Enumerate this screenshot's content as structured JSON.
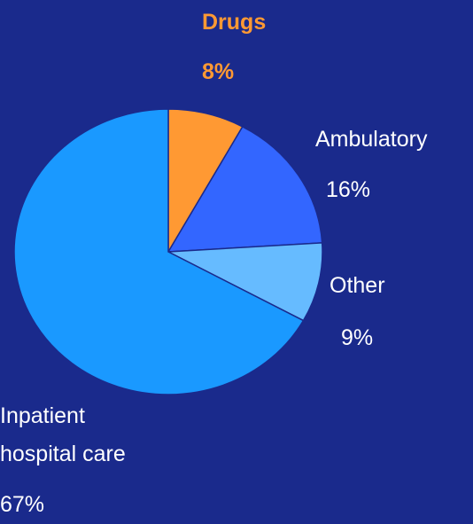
{
  "chart_data": {
    "type": "pie",
    "categories": [
      "Drugs",
      "Ambulatory",
      "Other",
      "Inpatient hospital care"
    ],
    "values": [
      8,
      16,
      9,
      67
    ],
    "value_labels": [
      "8%",
      "16%",
      "9%",
      "67%"
    ],
    "colors": [
      "#ff9933",
      "#3366ff",
      "#66bbff",
      "#1a99ff"
    ]
  }
}
